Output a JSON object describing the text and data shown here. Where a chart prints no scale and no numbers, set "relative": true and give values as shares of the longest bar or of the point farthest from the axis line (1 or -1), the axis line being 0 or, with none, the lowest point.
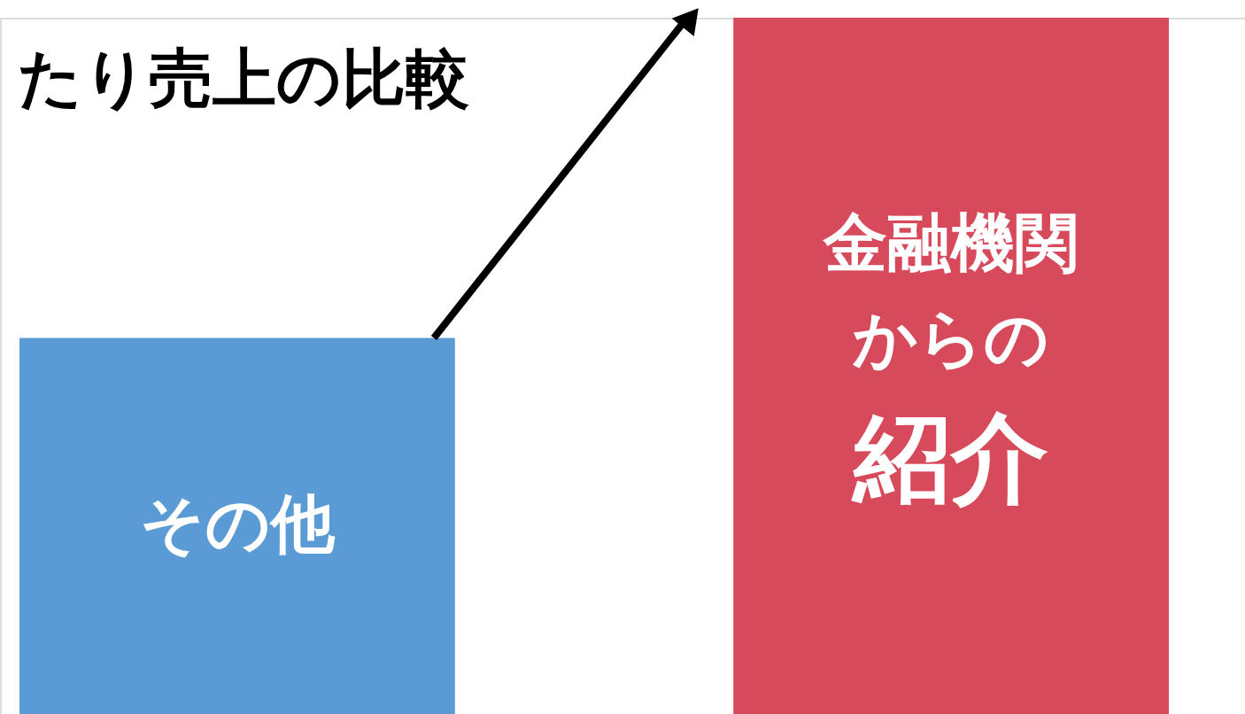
{
  "chart_data": {
    "type": "bar",
    "title": "たり売上の比較",
    "categories": [
      "その他",
      "金融機関からの紹介"
    ],
    "values": [
      0.54,
      1
    ],
    "colors": [
      "#5b9bd5",
      "#d64a5b"
    ],
    "relative": true,
    "grid": false
  }
}
